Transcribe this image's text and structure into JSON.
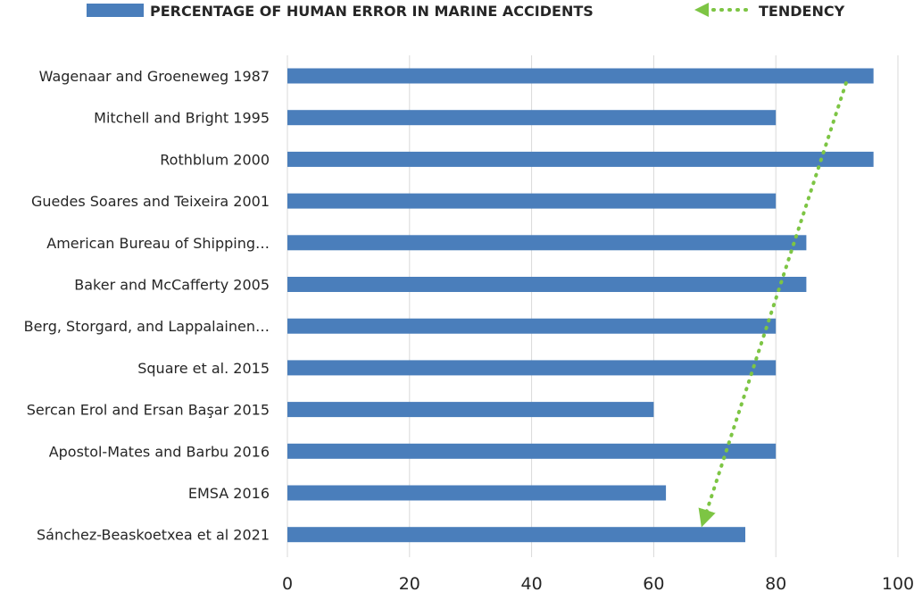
{
  "chart_data": {
    "type": "bar",
    "orientation": "horizontal",
    "categories": [
      "Wagenaar and Groeneweg 1987",
      "Mitchell and Bright 1995",
      "Rothblum 2000",
      "Guedes Soares and Teixeira 2001",
      "American Bureau of Shipping…",
      "Baker and McCafferty 2005",
      "Berg, Storgard, and Lappalainen…",
      "Square et al. 2015",
      "Sercan Erol and Ersan Başar 2015",
      "Apostol-Mates and Barbu 2016",
      "EMSA 2016",
      "Sánchez-Beaskoetxea et al 2021"
    ],
    "series": [
      {
        "name": "PERCENTAGE OF HUMAN ERROR IN MARINE ACCIDENTS",
        "values": [
          96,
          80,
          96,
          80,
          85,
          85,
          80,
          80,
          60,
          80,
          62,
          75
        ],
        "color": "#4a7ebb"
      }
    ],
    "trendline": {
      "name": "TENDENCY",
      "style": "dotted",
      "color": "#7dc544",
      "from": {
        "category_index": 0,
        "value": 91.5
      },
      "to": {
        "category_index": 11,
        "value": 68
      }
    },
    "xlim": [
      0,
      100
    ],
    "xticks": [
      "0",
      "20",
      "40",
      "60",
      "80",
      "100"
    ],
    "grid": true,
    "legend_position": "top"
  }
}
